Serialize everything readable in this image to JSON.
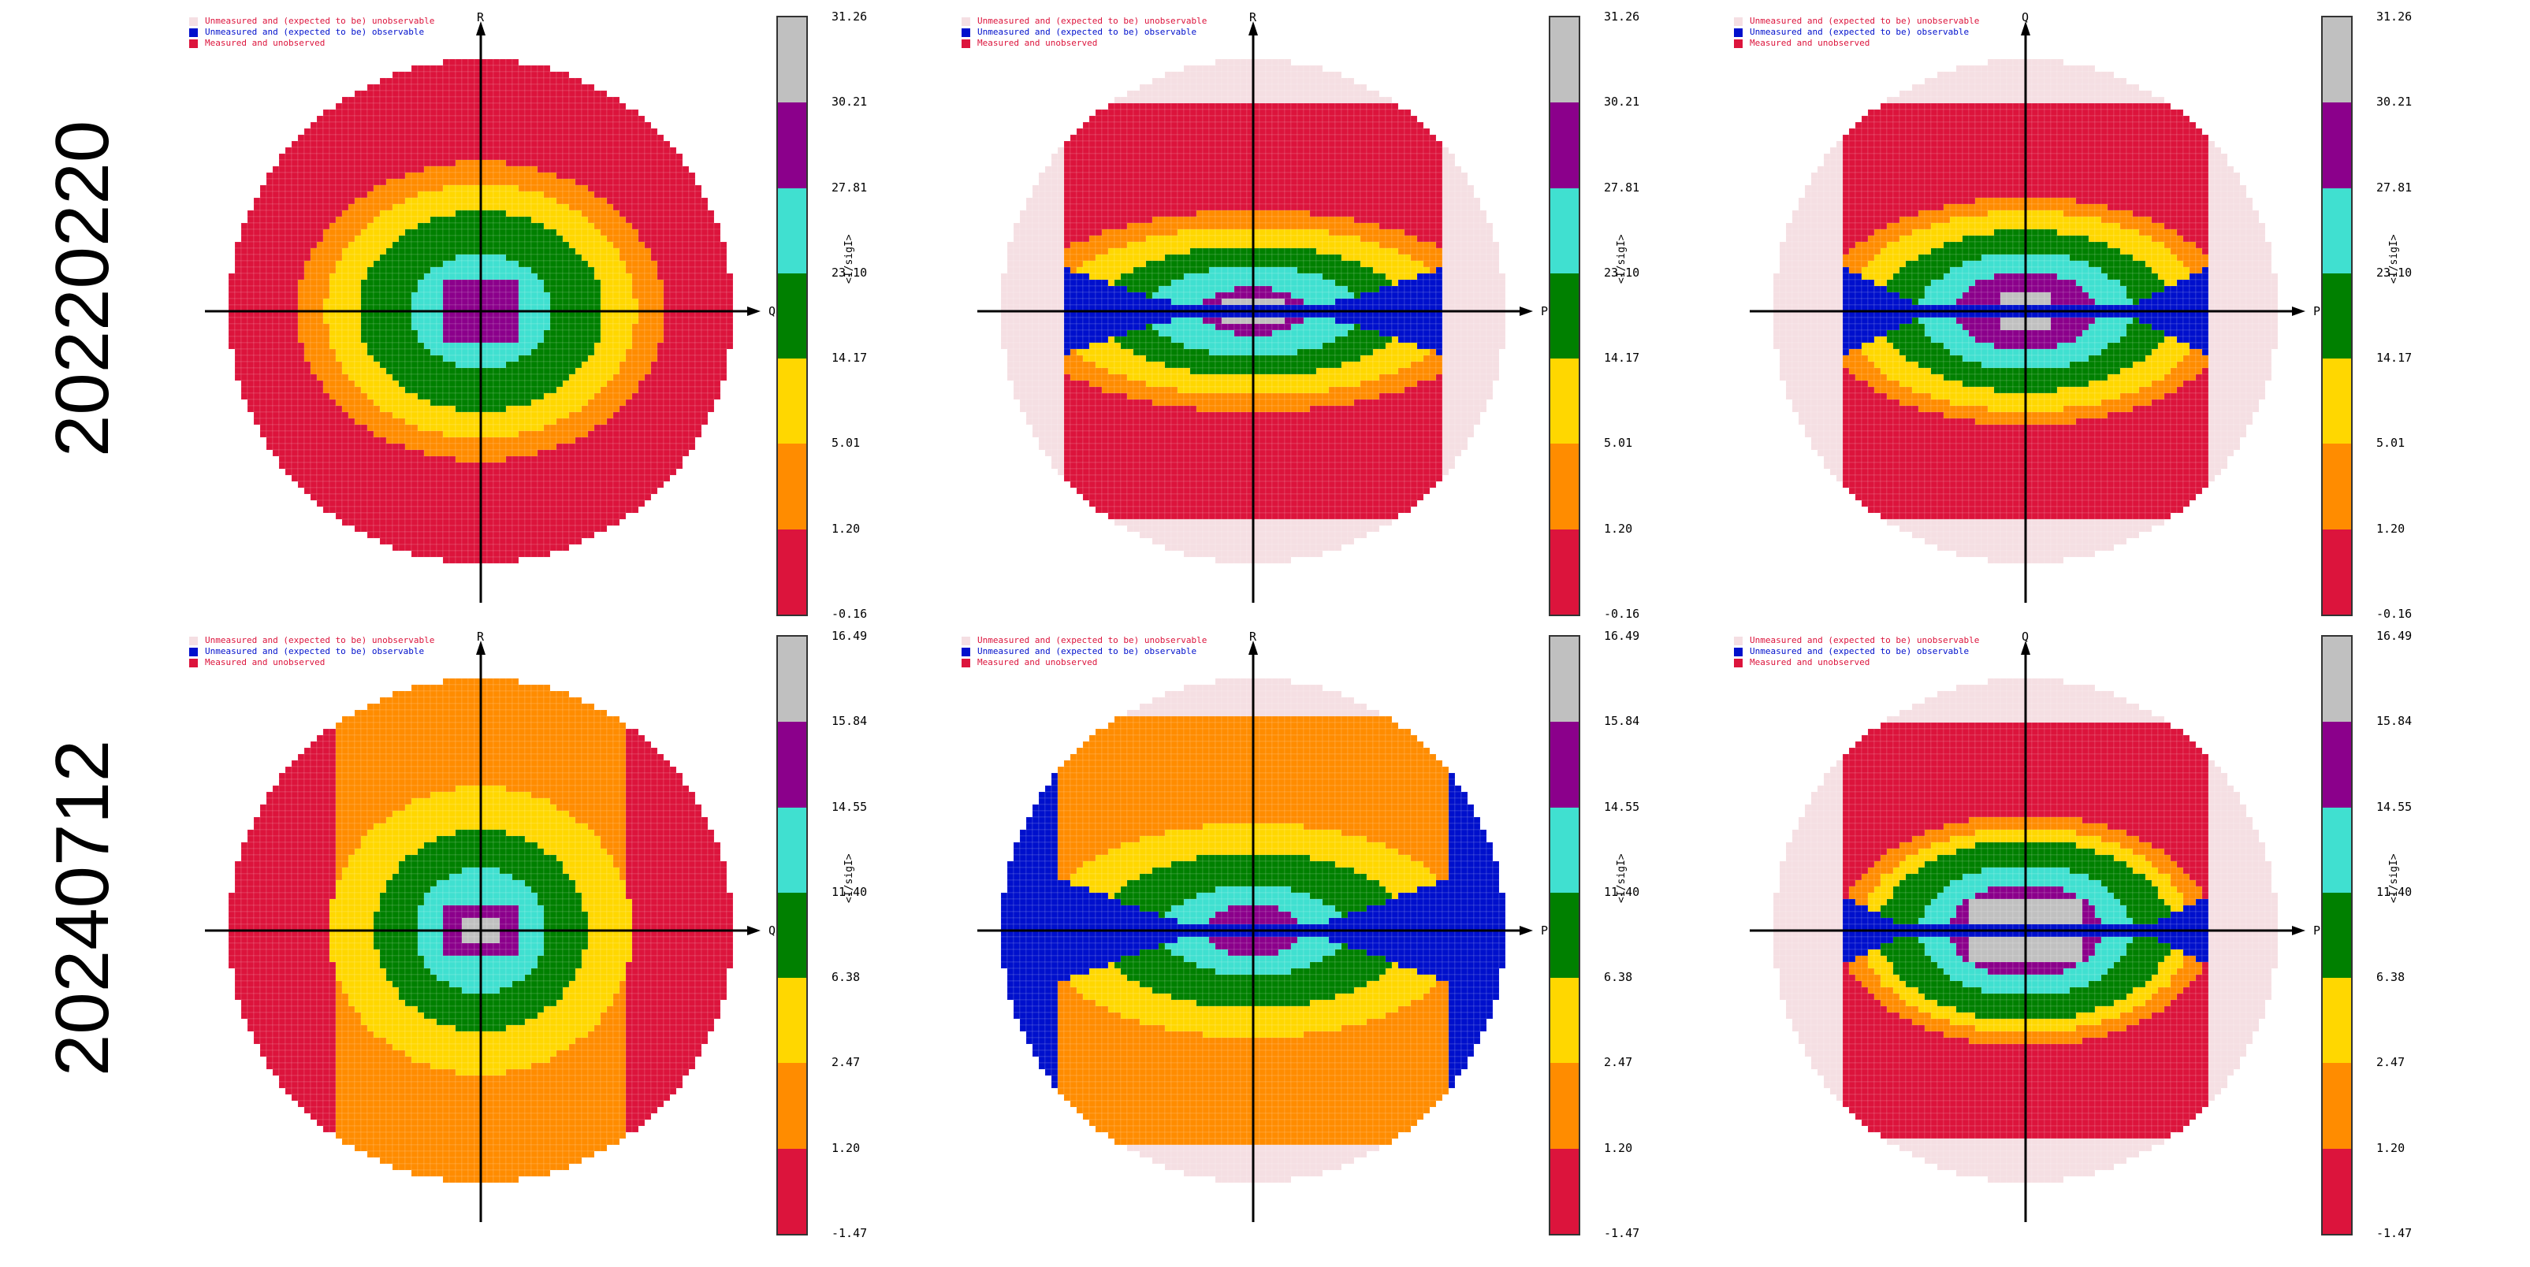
{
  "legend": {
    "expected_unobservable": "Unmeasured and (expected to be) unobservable",
    "expected_observable": "Unmeasured and (expected to be) observable",
    "measured_unobserved": "Measured and unobserved"
  },
  "colors": {
    "bands": [
      "#dc143c",
      "#ff8c00",
      "#ffd700",
      "#008000",
      "#40e0d0",
      "#8b008b",
      "#c0c0c0"
    ],
    "unobservable": "#f5dfe3",
    "observable": "#0010cc",
    "measured_unobserved_legend": "#dc143c"
  },
  "colorbar_title": "<I/sigI>",
  "rows": [
    {
      "label": "20220220",
      "ticks": [
        "31.26",
        "30.21",
        "27.81",
        "23.10",
        "14.17",
        "5.01",
        "1.20",
        "-0.16"
      ],
      "panels": [
        {
          "h_axis": "Q",
          "v_axis": "R"
        },
        {
          "h_axis": "P",
          "v_axis": "R"
        },
        {
          "h_axis": "P",
          "v_axis": "Q"
        }
      ]
    },
    {
      "label": "20240712",
      "ticks": [
        "16.49",
        "15.84",
        "14.55",
        "11.40",
        "6.38",
        "2.47",
        "1.20",
        "-1.47"
      ],
      "panels": [
        {
          "h_axis": "Q",
          "v_axis": "R"
        },
        {
          "h_axis": "P",
          "v_axis": "R"
        },
        {
          "h_axis": "P",
          "v_axis": "Q"
        }
      ]
    }
  ]
}
